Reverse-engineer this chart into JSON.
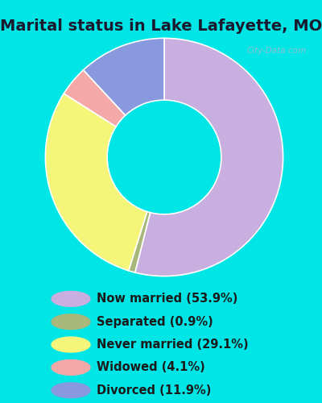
{
  "title": "Marital status in Lake Lafayette, MO",
  "labels": [
    "Now married",
    "Separated",
    "Never married",
    "Widowed",
    "Divorced"
  ],
  "values": [
    53.9,
    0.9,
    29.1,
    4.1,
    11.9
  ],
  "colors": [
    "#c9aee0",
    "#a8b87a",
    "#f5f57a",
    "#f4a8a8",
    "#8899dd"
  ],
  "legend_labels": [
    "Now married (53.9%)",
    "Separated (0.9%)",
    "Never married (29.1%)",
    "Widowed (4.1%)",
    "Divorced (11.9%)"
  ],
  "legend_colors": [
    "#c9aee0",
    "#a8b87a",
    "#f5f57a",
    "#f4a8a8",
    "#8899dd"
  ],
  "bg_cyan": "#00e5e5",
  "bg_chart": "#d8f0e0",
  "title_fontsize": 14,
  "legend_fontsize": 10.5,
  "watermark": "City-Data.com"
}
